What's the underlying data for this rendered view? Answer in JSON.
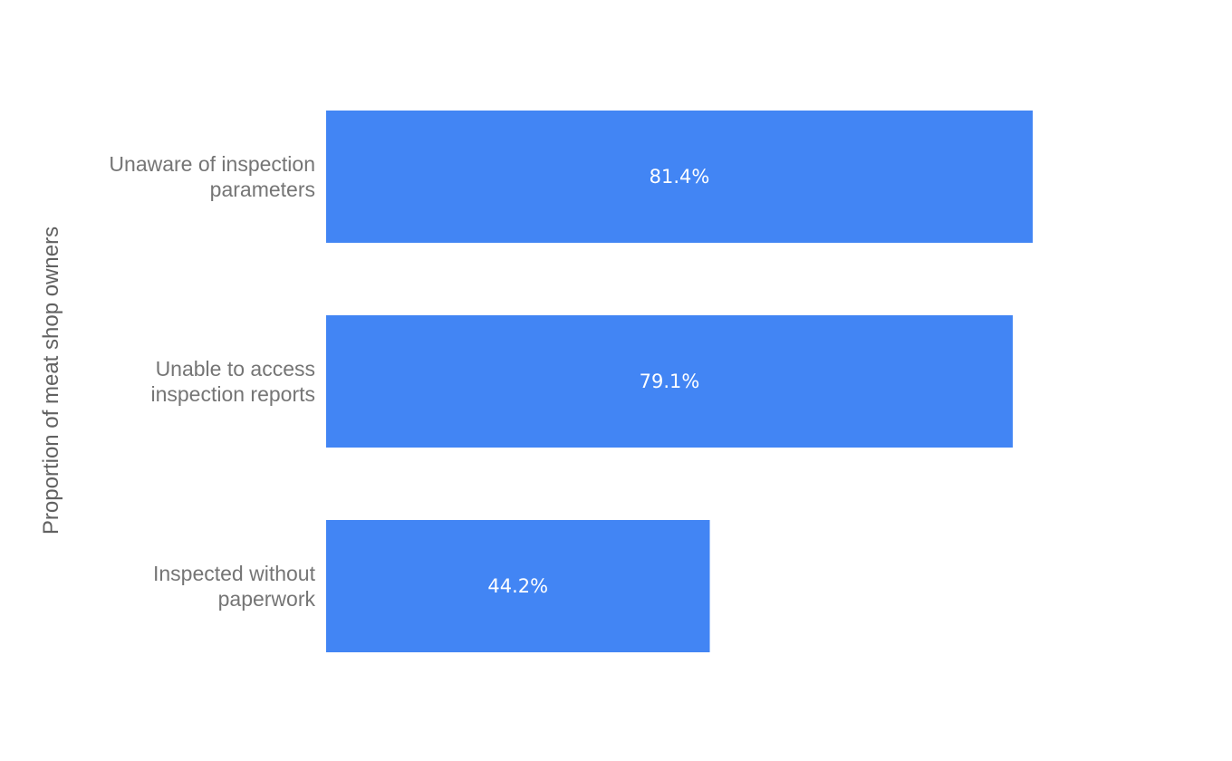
{
  "chart_data": {
    "type": "bar",
    "orientation": "horizontal",
    "categories": [
      [
        "Unaware of inspection",
        "parameters"
      ],
      [
        "Unable to access",
        "inspection reports"
      ],
      [
        "Inspected without",
        "paperwork"
      ]
    ],
    "values": [
      81.4,
      79.1,
      44.2
    ],
    "value_labels": [
      "81.4%",
      "79.1%",
      "44.2%"
    ],
    "ylabel": "Proportion of meat shop owners",
    "xlim": [
      0,
      100
    ],
    "grid": false,
    "legend": "none",
    "bar_color": "#4285f4"
  }
}
